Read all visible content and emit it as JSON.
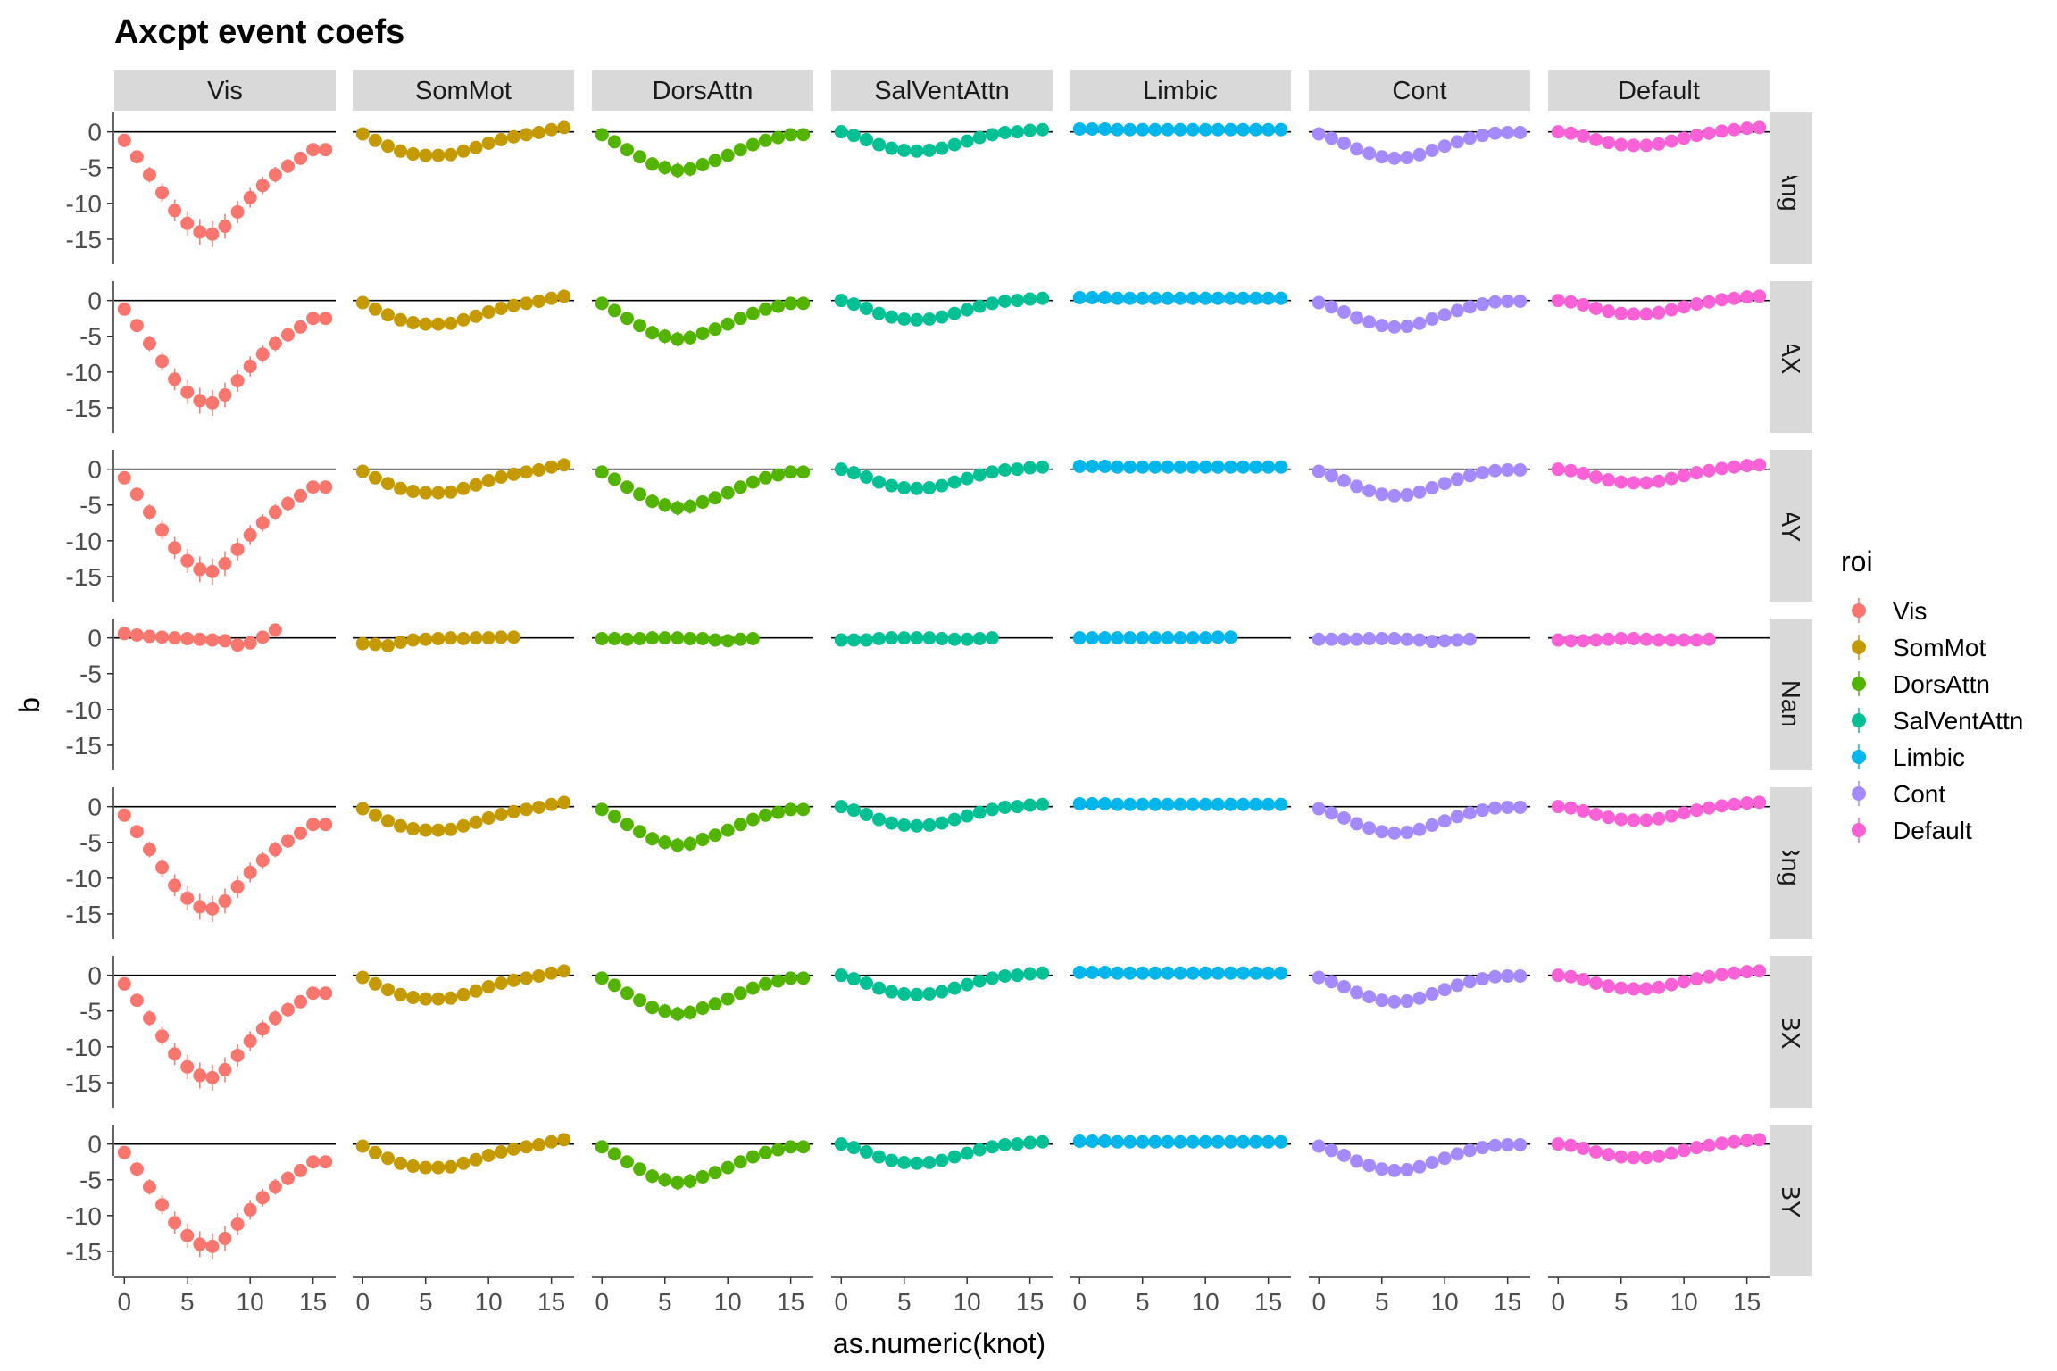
{
  "chart_data": {
    "type": "scatter",
    "title": "Axcpt event coefs",
    "xlabel": "as.numeric(knot)",
    "ylabel": "b",
    "xlim": [
      -0.8,
      16.8
    ],
    "ylim": [
      -18.5,
      2.7
    ],
    "x_ticks": [
      0,
      5,
      10,
      15
    ],
    "y_ticks": [
      0,
      -5,
      -10,
      -15
    ],
    "y_tick_labels": [
      "0",
      "-5",
      "-10",
      "-15"
    ],
    "reference_line_y": 0,
    "grid": false,
    "legend_title": "roi",
    "legend_position": "right",
    "columns": [
      "Vis",
      "SomMot",
      "DorsAttn",
      "SalVentAttn",
      "Limbic",
      "Cont",
      "Default"
    ],
    "rows": [
      "Ang",
      "AX",
      "AY",
      "BlockONandOFF",
      "Bng",
      "BX",
      "BY"
    ],
    "row_strip_labels": [
      "Ang",
      "AX",
      "AY",
      "ockONandOI",
      "Bng",
      "BX",
      "BY"
    ],
    "colors": {
      "Vis": "#F8766D",
      "SomMot": "#C49A00",
      "DorsAttn": "#53B400",
      "SalVentAttn": "#00C094",
      "Limbic": "#00B6EB",
      "Cont": "#A58AFF",
      "Default": "#FB61D7"
    },
    "x": [
      0,
      1,
      2,
      3,
      4,
      5,
      6,
      7,
      8,
      9,
      10,
      11,
      12,
      13,
      14,
      15,
      16
    ],
    "block_x": [
      0,
      1,
      2,
      3,
      4,
      5,
      6,
      7,
      8,
      9,
      10,
      11,
      12
    ],
    "series": [
      {
        "name": "Vis",
        "values": [
          -1.2,
          -3.5,
          -6.0,
          -8.5,
          -11.0,
          -12.8,
          -14.0,
          -14.3,
          -13.2,
          -11.2,
          -9.2,
          -7.5,
          -6.0,
          -4.8,
          -3.7,
          -2.5,
          -2.5
        ]
      },
      {
        "name": "SomMot",
        "values": [
          -0.3,
          -1.2,
          -2.0,
          -2.7,
          -3.1,
          -3.3,
          -3.3,
          -3.2,
          -2.7,
          -2.2,
          -1.6,
          -1.1,
          -0.7,
          -0.4,
          -0.1,
          0.3,
          0.6
        ]
      },
      {
        "name": "DorsAttn",
        "values": [
          -0.4,
          -1.4,
          -2.5,
          -3.5,
          -4.5,
          -5.0,
          -5.4,
          -5.2,
          -4.6,
          -4.0,
          -3.3,
          -2.5,
          -1.8,
          -1.2,
          -0.8,
          -0.4,
          -0.4
        ]
      },
      {
        "name": "SalVentAttn",
        "values": [
          0.0,
          -0.5,
          -1.1,
          -1.8,
          -2.3,
          -2.6,
          -2.7,
          -2.6,
          -2.3,
          -1.8,
          -1.3,
          -0.8,
          -0.4,
          -0.1,
          0.0,
          0.2,
          0.3
        ]
      },
      {
        "name": "Limbic",
        "values": [
          0.4,
          0.4,
          0.4,
          0.3,
          0.3,
          0.3,
          0.3,
          0.3,
          0.3,
          0.3,
          0.3,
          0.3,
          0.3,
          0.3,
          0.3,
          0.3,
          0.3
        ]
      },
      {
        "name": "Cont",
        "values": [
          -0.3,
          -0.9,
          -1.6,
          -2.4,
          -3.0,
          -3.5,
          -3.7,
          -3.6,
          -3.2,
          -2.6,
          -2.0,
          -1.4,
          -0.9,
          -0.5,
          -0.2,
          -0.1,
          -0.1
        ]
      },
      {
        "name": "Default",
        "values": [
          0.0,
          -0.2,
          -0.6,
          -1.1,
          -1.5,
          -1.8,
          -1.9,
          -1.9,
          -1.7,
          -1.3,
          -0.9,
          -0.5,
          -0.2,
          0.1,
          0.3,
          0.5,
          0.6
        ]
      }
    ],
    "row_scale": [
      1.0,
      1.0,
      1.0,
      0.0,
      1.0,
      1.0,
      1.0
    ],
    "block_series": [
      {
        "name": "Vis",
        "values": [
          0.6,
          0.4,
          0.2,
          0.1,
          0.0,
          -0.1,
          -0.2,
          -0.3,
          -0.4,
          -1.0,
          -0.7,
          0.1,
          1.1
        ]
      },
      {
        "name": "SomMot",
        "values": [
          -0.8,
          -0.9,
          -1.1,
          -0.6,
          -0.3,
          -0.2,
          -0.1,
          0.0,
          -0.1,
          0.0,
          0.0,
          0.1,
          0.1
        ]
      },
      {
        "name": "DorsAttn",
        "values": [
          -0.1,
          -0.1,
          -0.2,
          -0.1,
          0.0,
          0.0,
          0.0,
          -0.1,
          -0.1,
          -0.3,
          -0.4,
          -0.2,
          -0.1
        ]
      },
      {
        "name": "SalVentAttn",
        "values": [
          -0.3,
          -0.3,
          -0.3,
          -0.1,
          0.0,
          0.0,
          0.0,
          0.0,
          -0.1,
          -0.2,
          -0.2,
          -0.1,
          0.0
        ]
      },
      {
        "name": "Limbic",
        "values": [
          0.0,
          0.0,
          0.0,
          0.0,
          0.0,
          0.0,
          0.0,
          0.0,
          0.0,
          0.0,
          0.0,
          0.1,
          0.1
        ]
      },
      {
        "name": "Cont",
        "values": [
          -0.2,
          -0.2,
          -0.2,
          -0.2,
          -0.1,
          -0.1,
          -0.1,
          -0.2,
          -0.3,
          -0.5,
          -0.4,
          -0.3,
          -0.2
        ]
      },
      {
        "name": "Default",
        "values": [
          -0.3,
          -0.4,
          -0.4,
          -0.3,
          -0.2,
          -0.1,
          -0.1,
          -0.2,
          -0.3,
          -0.3,
          -0.3,
          -0.3,
          -0.2
        ]
      }
    ]
  }
}
